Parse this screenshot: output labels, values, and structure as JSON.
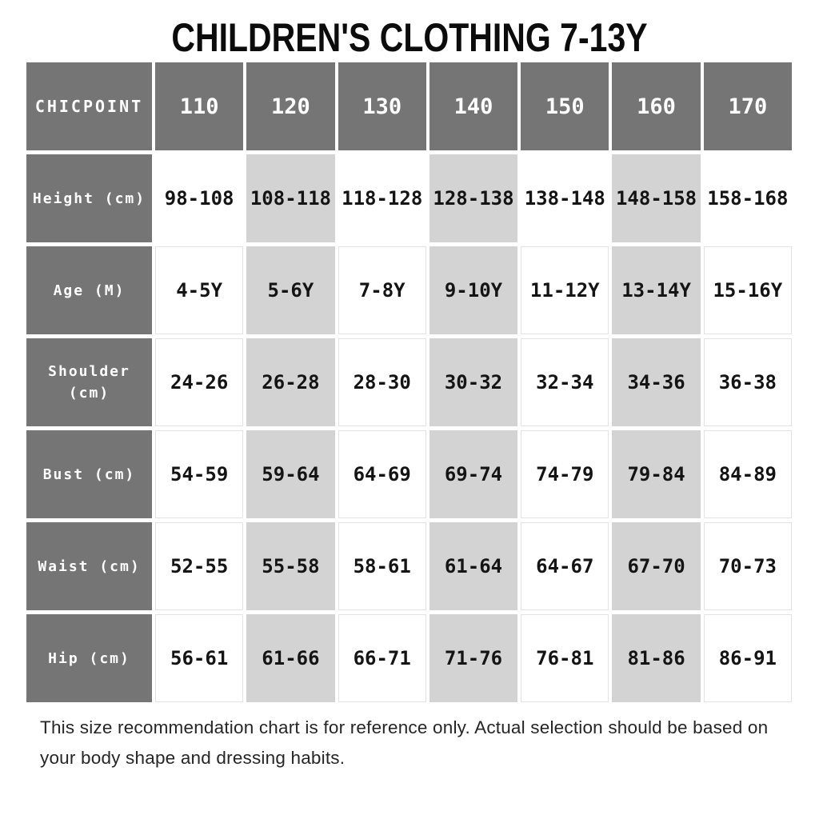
{
  "title": "CHILDREN'S CLOTHING 7-13Y",
  "chart_data": {
    "type": "table",
    "brand_label": "CHICPOINT",
    "columns": [
      "110",
      "120",
      "130",
      "140",
      "150",
      "160",
      "170"
    ],
    "rows": [
      {
        "label": "Height (cm)",
        "values": [
          "98-108",
          "108-118",
          "118-128",
          "128-138",
          "138-148",
          "148-158",
          "158-168"
        ]
      },
      {
        "label": "Age (M)",
        "values": [
          "4-5Y",
          "5-6Y",
          "7-8Y",
          "9-10Y",
          "11-12Y",
          "13-14Y",
          "15-16Y"
        ]
      },
      {
        "label": "Shoulder (cm)",
        "values": [
          "24-26",
          "26-28",
          "28-30",
          "30-32",
          "32-34",
          "34-36",
          "36-38"
        ]
      },
      {
        "label": "Bust (cm)",
        "values": [
          "54-59",
          "59-64",
          "64-69",
          "69-74",
          "74-79",
          "79-84",
          "84-89"
        ]
      },
      {
        "label": "Waist (cm)",
        "values": [
          "52-55",
          "55-58",
          "58-61",
          "61-64",
          "64-67",
          "67-70",
          "70-73"
        ]
      },
      {
        "label": "Hip (cm)",
        "values": [
          "56-61",
          "61-66",
          "66-71",
          "71-76",
          "76-81",
          "81-86",
          "86-91"
        ]
      }
    ]
  },
  "footer": {
    "text": "This size recommendation chart is for reference only. Actual selection should be based on your body shape and dressing habits."
  },
  "colors": {
    "header_bg": "#757575",
    "alt_column_bg": "#d3d3d3",
    "cell_border": "#e3e3e3",
    "title_text": "#0c0c0c",
    "cell_text": "#141414",
    "header_text": "#ffffff"
  }
}
